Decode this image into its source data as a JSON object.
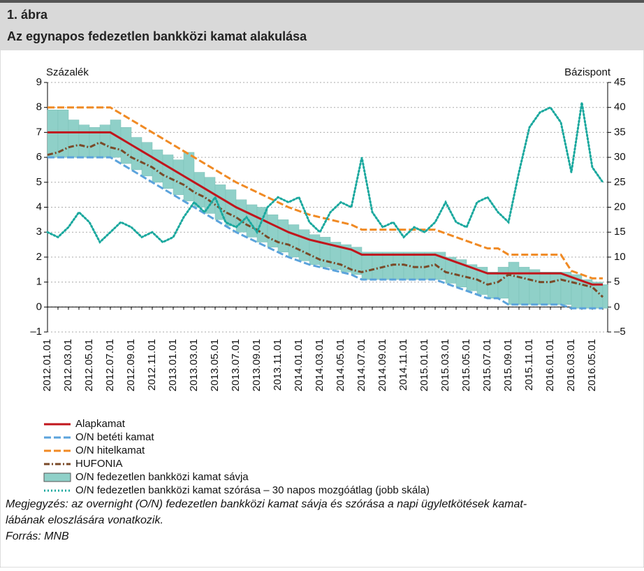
{
  "header": {
    "number": "1. ábra",
    "title": "Az egynapos fedezetlen bankközi kamat alakulása"
  },
  "chart_data": {
    "type": "line",
    "ylabel": "Százalék",
    "y2label": "Bázispont",
    "categories": [
      "2012.01.01",
      null,
      "2012.03.01",
      null,
      "2012.05.01",
      null,
      "2012.07.01",
      null,
      "2012.09.01",
      null,
      "2012.11.01",
      null,
      "2013.01.01",
      null,
      "2013.03.01",
      null,
      "2013.05.01",
      null,
      "2013.07.01",
      null,
      "2013.09.01",
      null,
      "2013.11.01",
      null,
      "2014.01.01",
      null,
      "2014.03.01",
      null,
      "2014.05.01",
      null,
      "2014.07.01",
      null,
      "2014.09.01",
      null,
      "2014.11.01",
      null,
      "2015.01.01",
      null,
      "2015.03.01",
      null,
      "2015.05.01",
      null,
      "2015.07.01",
      null,
      "2015.09.01",
      null,
      "2015.11.01",
      null,
      "2016.01.01",
      null,
      "2016.03.01",
      null,
      "2016.05.01",
      null
    ],
    "ylim": [
      -1,
      9
    ],
    "yticks": [
      {
        "value": -1,
        "label": "–1"
      },
      0,
      1,
      2,
      3,
      4,
      5,
      6,
      7,
      8,
      9
    ],
    "y2lim": [
      -5,
      45
    ],
    "y2ticks": [
      {
        "value": -5,
        "label": "–5"
      },
      0,
      5,
      10,
      15,
      20,
      25,
      30,
      35,
      40,
      45
    ],
    "grid": true,
    "band": {
      "name": "O/N fedezetlen bankközi kamat sávja",
      "color": "#8fd0c8",
      "low": [
        6,
        6,
        6,
        6,
        6,
        6,
        6,
        5.75,
        5.5,
        5.25,
        5,
        4.75,
        4.5,
        4.25,
        4,
        3.75,
        3.5,
        3.25,
        3,
        2.8,
        2.6,
        2.4,
        2.2,
        2,
        1.85,
        1.7,
        1.6,
        1.5,
        1.4,
        1.3,
        1.1,
        1.1,
        1.1,
        1.1,
        1.1,
        1.1,
        1.1,
        1.1,
        0.95,
        0.8,
        0.65,
        0.5,
        0.35,
        0.35,
        0.1,
        0.1,
        0.1,
        0.1,
        0.1,
        0.1,
        -0.05,
        -0.05,
        -0.05,
        -0.05
      ],
      "high": [
        7.9,
        7.9,
        7.5,
        7.3,
        7.2,
        7.3,
        7.5,
        7.2,
        6.8,
        6.6,
        6.3,
        6.1,
        5.9,
        6.2,
        5.4,
        5.2,
        4.9,
        4.7,
        4.3,
        4.1,
        4,
        3.7,
        3.5,
        3.3,
        3.1,
        2.9,
        2.8,
        2.6,
        2.5,
        2.4,
        2.2,
        2.2,
        2.2,
        2.2,
        2.2,
        2.2,
        2.2,
        2.2,
        2,
        1.9,
        1.7,
        1.6,
        1.4,
        1.6,
        1.8,
        1.6,
        1.5,
        1.4,
        1.4,
        1.4,
        1.3,
        1.1,
        1,
        0.9
      ]
    },
    "series": [
      {
        "name": "Alapkamat",
        "color": "#c0161c",
        "style": "solid",
        "values": [
          7,
          7,
          7,
          7,
          7,
          7,
          7,
          6.75,
          6.5,
          6.25,
          6,
          5.75,
          5.5,
          5.25,
          5,
          4.75,
          4.5,
          4.25,
          4,
          3.8,
          3.6,
          3.4,
          3.2,
          3,
          2.85,
          2.7,
          2.6,
          2.5,
          2.4,
          2.3,
          2.1,
          2.1,
          2.1,
          2.1,
          2.1,
          2.1,
          2.1,
          2.1,
          1.95,
          1.8,
          1.65,
          1.5,
          1.35,
          1.35,
          1.35,
          1.35,
          1.35,
          1.35,
          1.35,
          1.35,
          1.2,
          1.05,
          0.9,
          0.9
        ]
      },
      {
        "name": "O/N betéti kamat",
        "color": "#5ba3dc",
        "style": "dash",
        "values": [
          6,
          6,
          6,
          6,
          6,
          6,
          6,
          5.75,
          5.5,
          5.25,
          5,
          4.75,
          4.5,
          4.25,
          4,
          3.75,
          3.5,
          3.25,
          3,
          2.8,
          2.6,
          2.4,
          2.2,
          2,
          1.85,
          1.7,
          1.6,
          1.5,
          1.4,
          1.3,
          1.1,
          1.1,
          1.1,
          1.1,
          1.1,
          1.1,
          1.1,
          1.1,
          0.95,
          0.8,
          0.65,
          0.5,
          0.35,
          0.35,
          0.1,
          0.1,
          0.1,
          0.1,
          0.1,
          0.1,
          -0.05,
          -0.05,
          -0.05,
          -0.05
        ]
      },
      {
        "name": "O/N hitelkamat",
        "color": "#f08a24",
        "style": "dash",
        "values": [
          8,
          8,
          8,
          8,
          8,
          8,
          8,
          7.75,
          7.5,
          7.25,
          7,
          6.75,
          6.5,
          6.25,
          6,
          5.75,
          5.5,
          5.25,
          5,
          4.8,
          4.6,
          4.4,
          4.2,
          4,
          3.85,
          3.7,
          3.6,
          3.5,
          3.4,
          3.3,
          3.1,
          3.1,
          3.1,
          3.1,
          3.1,
          3.1,
          3.1,
          3.1,
          2.95,
          2.8,
          2.65,
          2.5,
          2.35,
          2.35,
          2.1,
          2.1,
          2.1,
          2.1,
          2.1,
          2.1,
          1.45,
          1.3,
          1.15,
          1.15
        ]
      },
      {
        "name": "HUFONIA",
        "color": "#7a4a28",
        "style": "dashdot",
        "values": [
          6.1,
          6.2,
          6.4,
          6.5,
          6.4,
          6.6,
          6.4,
          6.3,
          6,
          5.8,
          5.6,
          5.3,
          5.1,
          4.9,
          4.6,
          4.4,
          4.1,
          3.8,
          3.6,
          3.3,
          3.1,
          2.8,
          2.6,
          2.5,
          2.3,
          2.1,
          1.9,
          1.8,
          1.7,
          1.5,
          1.4,
          1.5,
          1.6,
          1.7,
          1.7,
          1.6,
          1.6,
          1.7,
          1.4,
          1.3,
          1.2,
          1.1,
          0.9,
          1,
          1.3,
          1.2,
          1.1,
          1,
          1,
          1.1,
          1,
          0.9,
          0.8,
          0.4
        ]
      },
      {
        "name": "O/N fedezetlen bankközi kamat szórása – 30 napos mozgóátlag (jobb skála)",
        "color": "#1aa89e",
        "style": "dot",
        "axis": "y2",
        "values": [
          15,
          14,
          16,
          19,
          17,
          13,
          15,
          17,
          16,
          14,
          15,
          13,
          14,
          18,
          21,
          19,
          22,
          17,
          16,
          18,
          15,
          20,
          22,
          21,
          22,
          17,
          15,
          19,
          21,
          20,
          30,
          19,
          16,
          17,
          14,
          16,
          15,
          17,
          21,
          17,
          16,
          21,
          22,
          19,
          17,
          27,
          36,
          39,
          40,
          37,
          27,
          41,
          28,
          25
        ]
      }
    ],
    "note": "Megjegyzés: az overnight (O/N) fedezetlen bankközi kamat sávja és szórása a napi ügyletkötések kamat-",
    "note2": "lábának eloszlására vonatkozik.",
    "source": "Forrás: MNB"
  }
}
